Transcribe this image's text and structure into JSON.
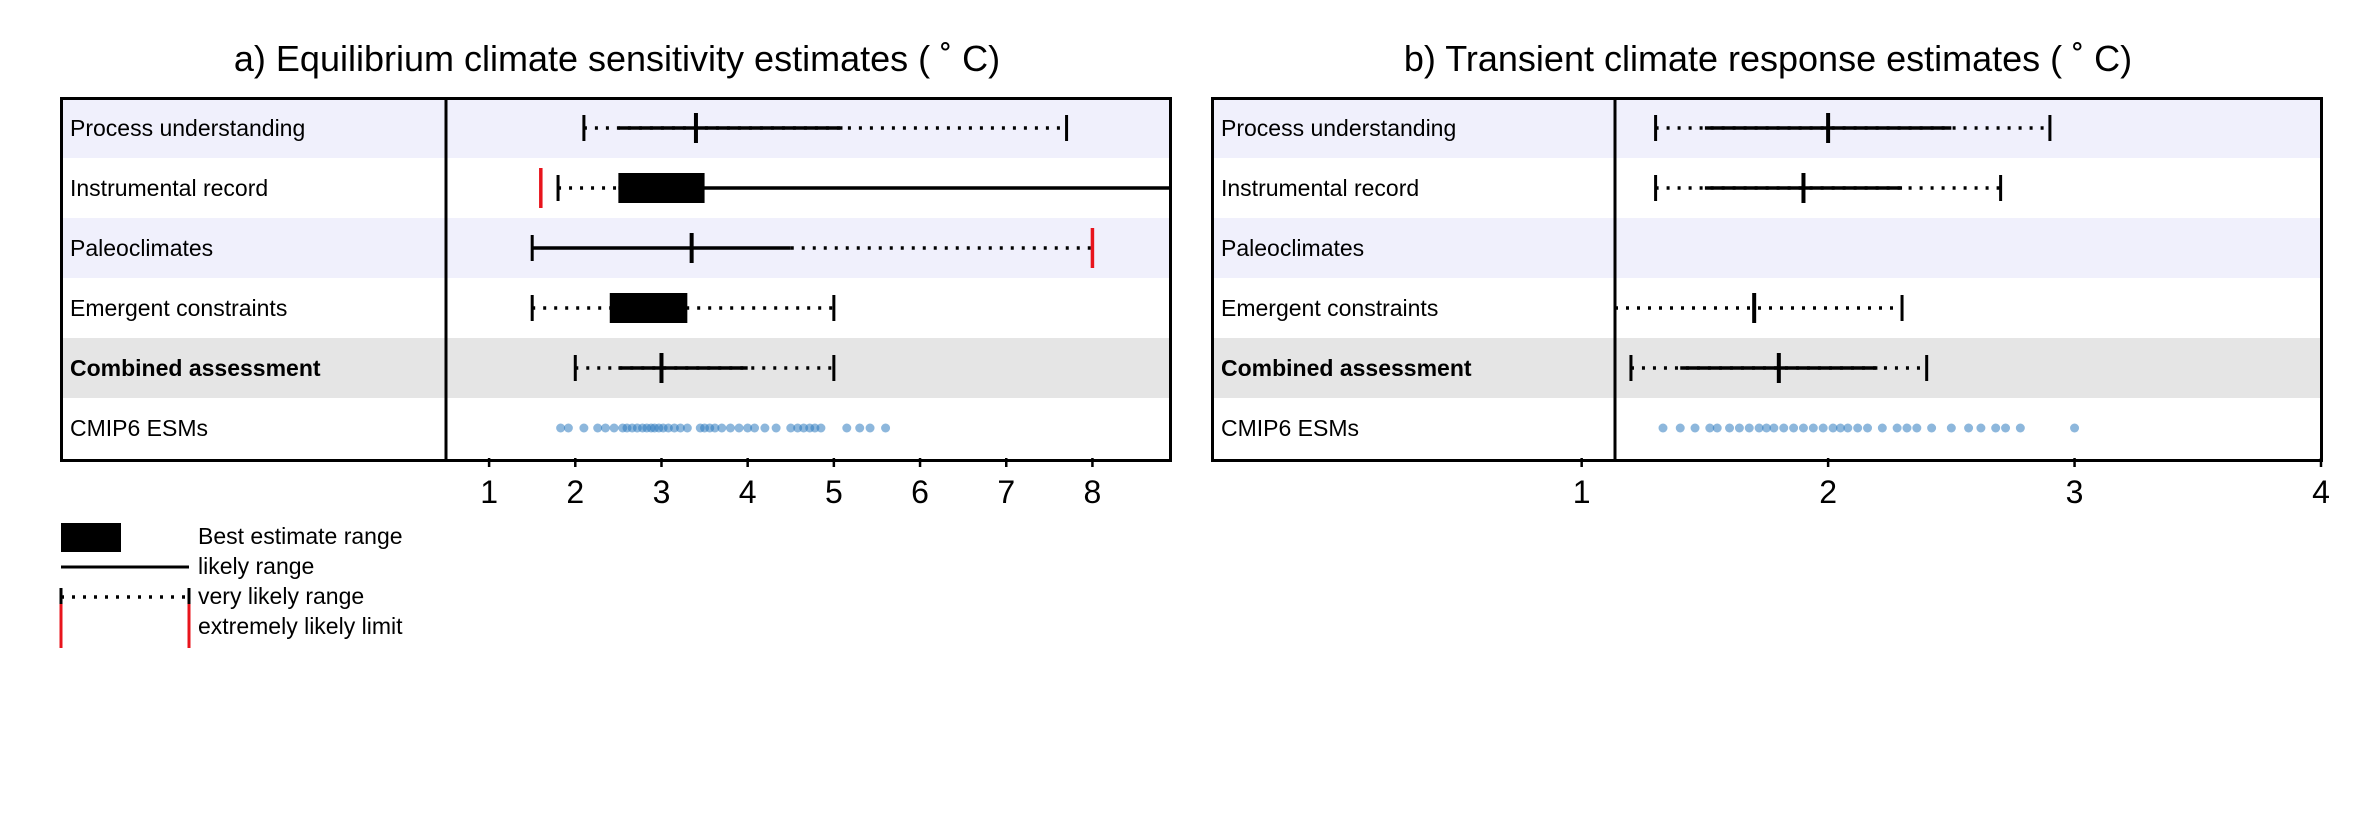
{
  "chart_data": [
    {
      "type": "range",
      "title": "a) Equilibrium climate sensitivity estimates ( ˚ C)",
      "xlim": [
        0.5,
        8.9
      ],
      "xticks": [
        1,
        2,
        3,
        4,
        5,
        6,
        7,
        8
      ],
      "row_colors": [
        "#f0f0fc",
        "#ffffff",
        "#f0f0fc",
        "#ffffff",
        "#e5e5e5",
        "#ffffff"
      ],
      "rows": [
        {
          "label": "Process understanding",
          "bold": false,
          "very_likely": [
            2.1,
            7.7
          ],
          "likely": [
            2.5,
            5.1
          ],
          "best": 3.4
        },
        {
          "label": "Instrumental record",
          "bold": false,
          "extremely_likely_low": 1.6,
          "very_likely_low": 1.8,
          "likely": [
            2.5,
            8.9
          ],
          "best_range": [
            2.5,
            3.5
          ]
        },
        {
          "label": "Paleoclimates",
          "bold": false,
          "likely": [
            1.5,
            4.5
          ],
          "very_likely_high": 8.0,
          "extremely_likely_high": 8.0,
          "best": 3.35
        },
        {
          "label": "Emergent constraints",
          "bold": false,
          "very_likely": [
            1.5,
            5.0
          ],
          "best_range": [
            2.4,
            3.3
          ]
        },
        {
          "label": "Combined assessment",
          "bold": true,
          "very_likely": [
            2.0,
            5.0
          ],
          "likely": [
            2.5,
            4.0
          ],
          "best": 3.0
        },
        {
          "label": "CMIP6 ESMs",
          "bold": false,
          "points": [
            1.83,
            1.92,
            2.1,
            2.26,
            2.35,
            2.45,
            2.55,
            2.6,
            2.66,
            2.72,
            2.78,
            2.83,
            2.88,
            2.92,
            2.97,
            3.02,
            3.08,
            3.15,
            3.22,
            3.3,
            3.45,
            3.5,
            3.56,
            3.62,
            3.7,
            3.8,
            3.9,
            4.0,
            4.08,
            4.2,
            4.33,
            4.5,
            4.58,
            4.65,
            4.72,
            4.78,
            4.85,
            5.15,
            5.3,
            5.42,
            5.6
          ]
        }
      ]
    },
    {
      "type": "range",
      "title": "b) Transient climate response estimates ( ˚ C)",
      "xlim": [
        -0.5,
        4.0
      ],
      "xticks": [
        1,
        2,
        3,
        4
      ],
      "row_colors": [
        "#f0f0fc",
        "#ffffff",
        "#f0f0fc",
        "#ffffff",
        "#e5e5e5",
        "#ffffff"
      ],
      "rows": [
        {
          "label": "Process understanding",
          "bold": false,
          "very_likely": [
            1.3,
            2.9
          ],
          "likely": [
            1.5,
            2.5
          ],
          "best": 2.0
        },
        {
          "label": "Instrumental record",
          "bold": false,
          "very_likely": [
            1.3,
            2.7
          ],
          "likely": [
            1.5,
            2.3
          ],
          "best": 1.9
        },
        {
          "label": "Paleoclimates",
          "bold": false
        },
        {
          "label": "Emergent constraints",
          "bold": false,
          "very_likely": [
            1.1,
            2.3
          ],
          "best": 1.7
        },
        {
          "label": "Combined assessment",
          "bold": true,
          "very_likely": [
            1.2,
            2.4
          ],
          "likely": [
            1.4,
            2.2
          ],
          "best": 1.8
        },
        {
          "label": "CMIP6 ESMs",
          "bold": false,
          "points": [
            1.33,
            1.4,
            1.46,
            1.52,
            1.55,
            1.6,
            1.64,
            1.68,
            1.72,
            1.75,
            1.78,
            1.82,
            1.86,
            1.9,
            1.94,
            1.98,
            2.02,
            2.05,
            2.08,
            2.12,
            2.16,
            2.22,
            2.28,
            2.32,
            2.36,
            2.42,
            2.5,
            2.57,
            2.62,
            2.68,
            2.72,
            2.78,
            3.0
          ]
        }
      ]
    }
  ],
  "legend": {
    "best": "Best estimate range",
    "likely": "likely range",
    "very_likely": "very likely range",
    "extremely": "extremely likely limit"
  },
  "colors": {
    "extremely": "#e8141c",
    "points": "#2f7bbf",
    "line": "#000000"
  }
}
